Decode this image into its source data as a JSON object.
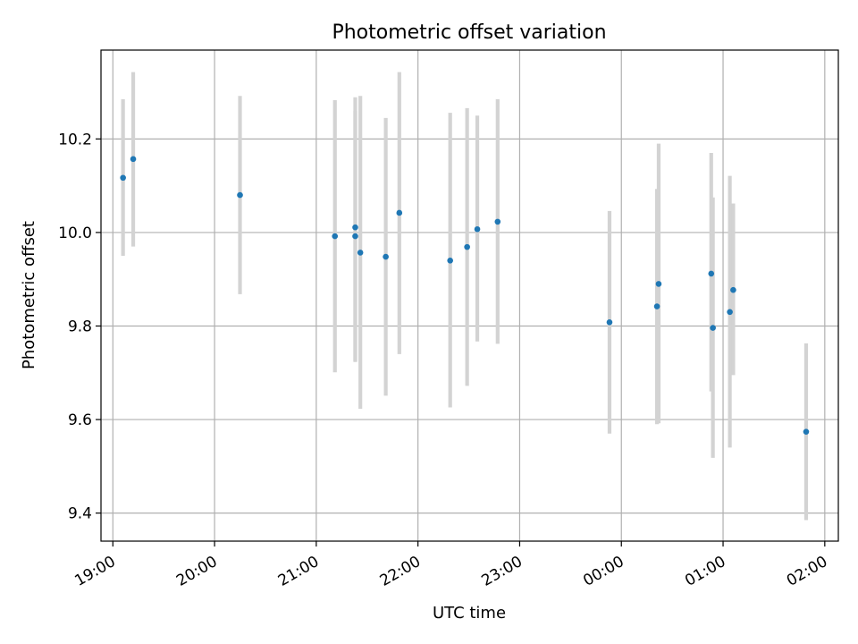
{
  "chart_data": {
    "type": "scatter",
    "title": "Photometric offset variation",
    "xlabel": "UTC time",
    "ylabel": "Photometric offset",
    "xlim": [
      "18:53",
      "02:08"
    ],
    "ylim": [
      9.34,
      10.39
    ],
    "grid": true,
    "x_tick_labels": [
      "19:00",
      "20:00",
      "21:00",
      "22:00",
      "23:00",
      "00:00",
      "01:00",
      "02:00"
    ],
    "y_tick_labels": [
      "9.4",
      "9.6",
      "9.8",
      "10.0",
      "10.2"
    ],
    "colors": {
      "point": "#1f77b4",
      "errorbar": "#d3d3d3",
      "grid": "#b0b0b0"
    },
    "series": [
      {
        "points": [
          {
            "time": "19:06",
            "y": 10.117,
            "ylow": 9.95,
            "yhigh": 10.285
          },
          {
            "time": "19:12",
            "y": 10.157,
            "ylow": 9.97,
            "yhigh": 10.343
          },
          {
            "time": "20:15",
            "y": 10.08,
            "ylow": 9.868,
            "yhigh": 10.292
          },
          {
            "time": "21:11",
            "y": 9.992,
            "ylow": 9.701,
            "yhigh": 10.283
          },
          {
            "time": "21:23",
            "y": 10.011,
            "ylow": 9.723,
            "yhigh": 10.289
          },
          {
            "time": "21:23",
            "y": 9.992,
            "ylow": 9.725,
            "yhigh": 10.26
          },
          {
            "time": "21:26",
            "y": 9.957,
            "ylow": 9.623,
            "yhigh": 10.292
          },
          {
            "time": "21:41",
            "y": 9.948,
            "ylow": 9.651,
            "yhigh": 10.245
          },
          {
            "time": "21:49",
            "y": 10.042,
            "ylow": 9.74,
            "yhigh": 10.343
          },
          {
            "time": "22:19",
            "y": 9.94,
            "ylow": 9.626,
            "yhigh": 10.256
          },
          {
            "time": "22:29",
            "y": 9.969,
            "ylow": 9.672,
            "yhigh": 10.266
          },
          {
            "time": "22:35",
            "y": 10.007,
            "ylow": 9.767,
            "yhigh": 10.25
          },
          {
            "time": "22:47",
            "y": 10.023,
            "ylow": 9.762,
            "yhigh": 10.285
          },
          {
            "time": "23:53",
            "y": 9.808,
            "ylow": 9.57,
            "yhigh": 10.046
          },
          {
            "time": "00:21",
            "y": 9.842,
            "ylow": 9.59,
            "yhigh": 10.093
          },
          {
            "time": "00:22",
            "y": 9.89,
            "ylow": 9.592,
            "yhigh": 10.19
          },
          {
            "time": "00:53",
            "y": 9.912,
            "ylow": 9.66,
            "yhigh": 10.17
          },
          {
            "time": "00:54",
            "y": 9.796,
            "ylow": 9.518,
            "yhigh": 10.075
          },
          {
            "time": "01:04",
            "y": 9.83,
            "ylow": 9.54,
            "yhigh": 10.121
          },
          {
            "time": "01:06",
            "y": 9.877,
            "ylow": 9.695,
            "yhigh": 10.062
          },
          {
            "time": "01:49",
            "y": 9.574,
            "ylow": 9.385,
            "yhigh": 9.763
          }
        ]
      }
    ]
  }
}
